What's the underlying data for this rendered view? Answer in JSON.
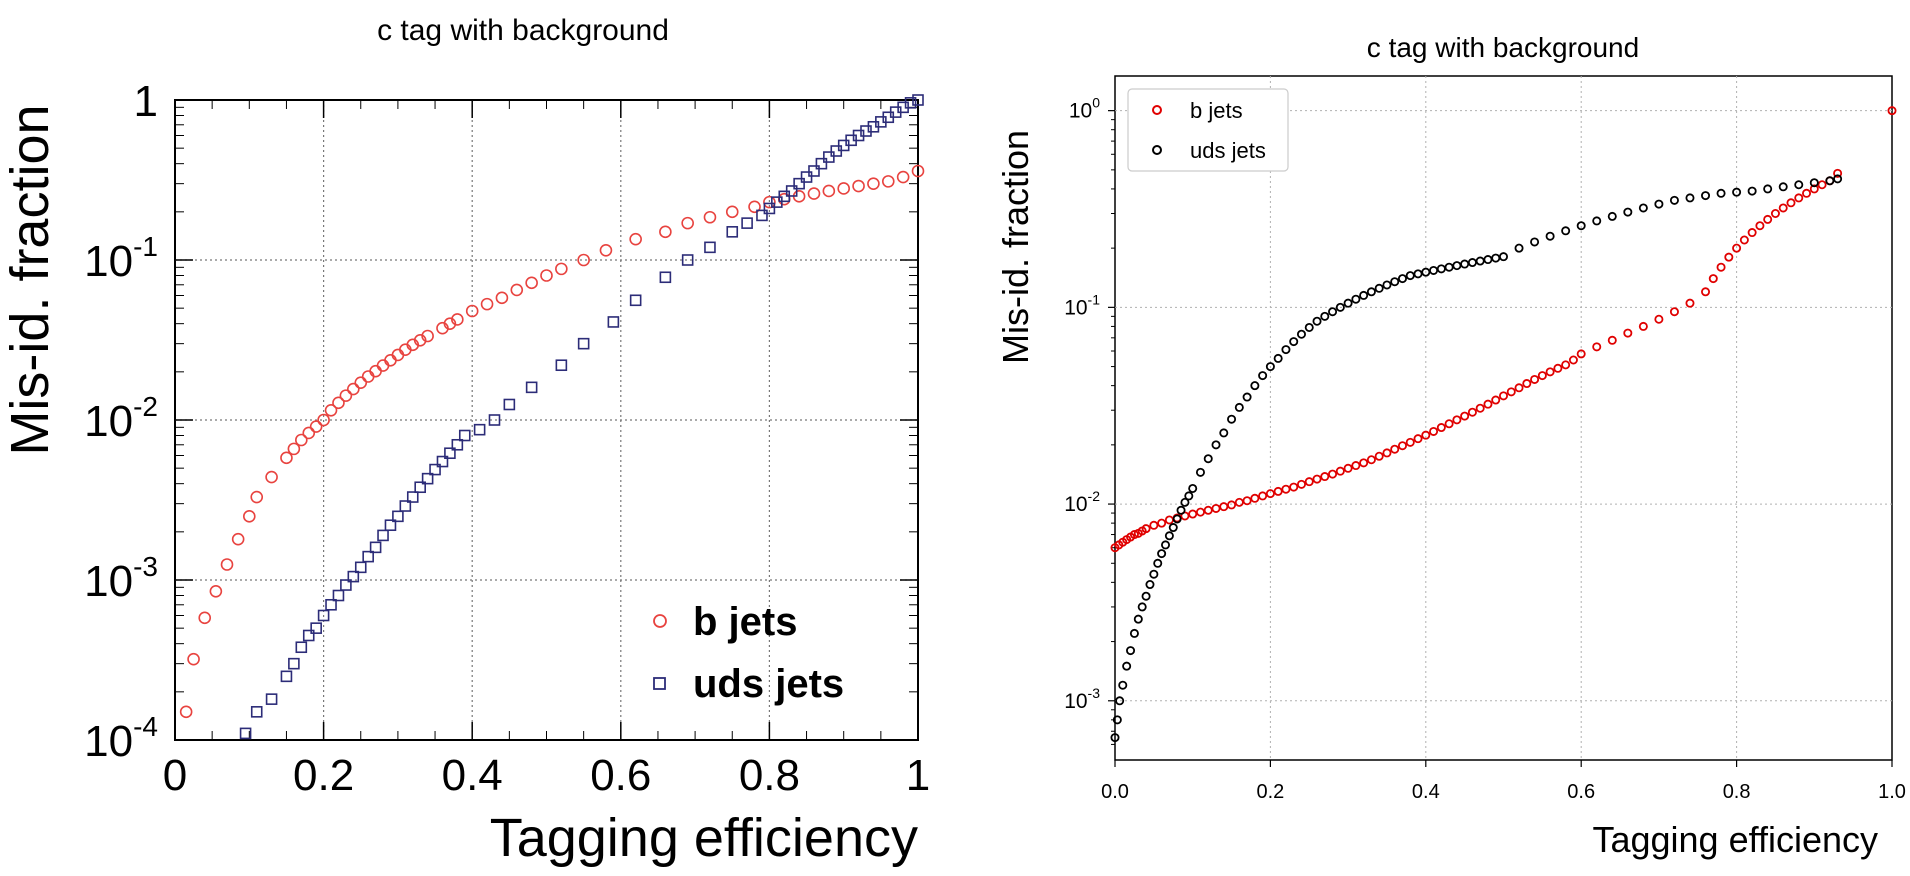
{
  "chart_data": [
    {
      "type": "scatter",
      "title": "c tag with background",
      "xlabel": "Tagging efficiency",
      "ylabel": "Mis-id. fraction",
      "xlim": [
        0,
        1
      ],
      "ylim": [
        0.0001,
        1
      ],
      "yscale": "log",
      "grid": true,
      "legend_position": "bottom-right",
      "x_ticks": [
        "0",
        "0.2",
        "0.4",
        "0.6",
        "0.8",
        "1"
      ],
      "y_ticks": [
        {
          "base": "10",
          "exp": "-4"
        },
        {
          "base": "10",
          "exp": "-3"
        },
        {
          "base": "10",
          "exp": "-2"
        },
        {
          "base": "10",
          "exp": "-1"
        },
        {
          "base": "1",
          "exp": ""
        }
      ],
      "series": [
        {
          "name": "b jets",
          "color": "#e8433f",
          "marker": "circle",
          "x": [
            0.015,
            0.025,
            0.04,
            0.055,
            0.07,
            0.085,
            0.1,
            0.11,
            0.13,
            0.15,
            0.16,
            0.17,
            0.18,
            0.19,
            0.2,
            0.21,
            0.22,
            0.23,
            0.24,
            0.25,
            0.26,
            0.27,
            0.28,
            0.29,
            0.3,
            0.31,
            0.32,
            0.33,
            0.34,
            0.36,
            0.37,
            0.38,
            0.4,
            0.42,
            0.44,
            0.46,
            0.48,
            0.5,
            0.52,
            0.55,
            0.58,
            0.62,
            0.66,
            0.69,
            0.72,
            0.75,
            0.78,
            0.8,
            0.82,
            0.84,
            0.86,
            0.88,
            0.9,
            0.92,
            0.94,
            0.96,
            0.98,
            1.0
          ],
          "y": [
            0.00015,
            0.00032,
            0.00058,
            0.00085,
            0.00125,
            0.0018,
            0.0025,
            0.0033,
            0.0044,
            0.0058,
            0.0066,
            0.0075,
            0.0083,
            0.0091,
            0.01,
            0.0115,
            0.0128,
            0.0142,
            0.0156,
            0.0171,
            0.0187,
            0.0202,
            0.0219,
            0.0236,
            0.0255,
            0.0275,
            0.0295,
            0.0315,
            0.0335,
            0.0375,
            0.04,
            0.0425,
            0.048,
            0.053,
            0.058,
            0.065,
            0.072,
            0.08,
            0.088,
            0.1,
            0.115,
            0.135,
            0.15,
            0.17,
            0.185,
            0.2,
            0.215,
            0.23,
            0.24,
            0.25,
            0.26,
            0.27,
            0.28,
            0.29,
            0.3,
            0.31,
            0.33,
            0.36
          ]
        },
        {
          "name": "uds jets",
          "color": "#2c2c78",
          "marker": "square",
          "x": [
            0.095,
            0.11,
            0.13,
            0.15,
            0.16,
            0.17,
            0.18,
            0.19,
            0.2,
            0.21,
            0.22,
            0.23,
            0.24,
            0.25,
            0.26,
            0.27,
            0.28,
            0.29,
            0.3,
            0.31,
            0.32,
            0.33,
            0.34,
            0.35,
            0.36,
            0.37,
            0.38,
            0.39,
            0.41,
            0.43,
            0.45,
            0.48,
            0.52,
            0.55,
            0.59,
            0.62,
            0.66,
            0.69,
            0.72,
            0.75,
            0.77,
            0.79,
            0.8,
            0.81,
            0.82,
            0.83,
            0.84,
            0.85,
            0.86,
            0.87,
            0.88,
            0.89,
            0.9,
            0.91,
            0.92,
            0.93,
            0.94,
            0.95,
            0.96,
            0.97,
            0.98,
            0.99,
            1.0
          ],
          "y": [
            0.00011,
            0.00015,
            0.00018,
            0.00025,
            0.0003,
            0.00038,
            0.00045,
            0.0005,
            0.0006,
            0.0007,
            0.0008,
            0.00093,
            0.00105,
            0.0012,
            0.0014,
            0.0016,
            0.0019,
            0.0022,
            0.0025,
            0.0029,
            0.0033,
            0.0038,
            0.0043,
            0.0049,
            0.0055,
            0.0062,
            0.007,
            0.008,
            0.0087,
            0.01,
            0.0125,
            0.016,
            0.022,
            0.03,
            0.041,
            0.056,
            0.078,
            0.1,
            0.12,
            0.15,
            0.17,
            0.19,
            0.21,
            0.23,
            0.25,
            0.27,
            0.3,
            0.33,
            0.36,
            0.4,
            0.44,
            0.48,
            0.52,
            0.56,
            0.6,
            0.64,
            0.68,
            0.73,
            0.78,
            0.84,
            0.9,
            0.96,
            1.0
          ]
        }
      ]
    },
    {
      "type": "scatter",
      "title": "c tag with background",
      "xlabel": "Tagging efficiency",
      "ylabel": "Mis-id. fraction",
      "xlim": [
        0,
        1
      ],
      "ylim": [
        0.0005,
        1.5
      ],
      "yscale": "log",
      "grid": true,
      "legend_position": "top-left",
      "x_ticks": [
        "0.0",
        "0.2",
        "0.4",
        "0.6",
        "0.8",
        "1.0"
      ],
      "y_ticks": [
        {
          "base": "10",
          "exp": "-3"
        },
        {
          "base": "10",
          "exp": "-2"
        },
        {
          "base": "10",
          "exp": "-1"
        },
        {
          "base": "10",
          "exp": "0"
        }
      ],
      "series": [
        {
          "name": "b jets",
          "color": "#e00000",
          "marker": "circle",
          "x": [
            0.0,
            0.005,
            0.01,
            0.015,
            0.02,
            0.025,
            0.03,
            0.035,
            0.04,
            0.05,
            0.06,
            0.07,
            0.08,
            0.09,
            0.1,
            0.11,
            0.12,
            0.13,
            0.14,
            0.15,
            0.16,
            0.17,
            0.18,
            0.19,
            0.2,
            0.21,
            0.22,
            0.23,
            0.24,
            0.25,
            0.26,
            0.27,
            0.28,
            0.29,
            0.3,
            0.31,
            0.32,
            0.33,
            0.34,
            0.35,
            0.36,
            0.37,
            0.38,
            0.39,
            0.4,
            0.41,
            0.42,
            0.43,
            0.44,
            0.45,
            0.46,
            0.47,
            0.48,
            0.49,
            0.5,
            0.51,
            0.52,
            0.53,
            0.54,
            0.55,
            0.56,
            0.57,
            0.58,
            0.59,
            0.6,
            0.62,
            0.64,
            0.66,
            0.68,
            0.7,
            0.72,
            0.74,
            0.76,
            0.77,
            0.78,
            0.79,
            0.8,
            0.81,
            0.82,
            0.83,
            0.84,
            0.85,
            0.86,
            0.87,
            0.88,
            0.89,
            0.9,
            0.91,
            0.92,
            0.93,
            1.0
          ],
          "y": [
            0.006,
            0.0062,
            0.0064,
            0.0066,
            0.0068,
            0.007,
            0.0071,
            0.0073,
            0.0075,
            0.0078,
            0.008,
            0.0083,
            0.0085,
            0.0087,
            0.0089,
            0.0091,
            0.0093,
            0.0095,
            0.0097,
            0.0099,
            0.0102,
            0.0104,
            0.0107,
            0.011,
            0.0113,
            0.0116,
            0.0119,
            0.0122,
            0.0126,
            0.013,
            0.0134,
            0.0138,
            0.0142,
            0.0147,
            0.0152,
            0.0157,
            0.0162,
            0.0168,
            0.0175,
            0.0182,
            0.019,
            0.0198,
            0.0206,
            0.0215,
            0.0224,
            0.0234,
            0.0245,
            0.0256,
            0.0268,
            0.028,
            0.0293,
            0.0307,
            0.0322,
            0.0338,
            0.0355,
            0.0372,
            0.039,
            0.041,
            0.043,
            0.045,
            0.047,
            0.049,
            0.051,
            0.054,
            0.058,
            0.063,
            0.068,
            0.074,
            0.08,
            0.087,
            0.095,
            0.105,
            0.12,
            0.14,
            0.16,
            0.18,
            0.2,
            0.22,
            0.24,
            0.26,
            0.28,
            0.3,
            0.32,
            0.34,
            0.36,
            0.38,
            0.4,
            0.42,
            0.44,
            0.48,
            1.0
          ]
        },
        {
          "name": "uds jets",
          "color": "#000000",
          "marker": "circle",
          "x": [
            0.0,
            0.003,
            0.006,
            0.01,
            0.015,
            0.02,
            0.025,
            0.03,
            0.035,
            0.04,
            0.045,
            0.05,
            0.055,
            0.06,
            0.065,
            0.07,
            0.075,
            0.08,
            0.085,
            0.09,
            0.095,
            0.1,
            0.11,
            0.12,
            0.13,
            0.14,
            0.15,
            0.16,
            0.17,
            0.18,
            0.19,
            0.2,
            0.21,
            0.22,
            0.23,
            0.24,
            0.25,
            0.26,
            0.27,
            0.28,
            0.29,
            0.3,
            0.31,
            0.32,
            0.33,
            0.34,
            0.35,
            0.36,
            0.37,
            0.38,
            0.39,
            0.4,
            0.41,
            0.42,
            0.43,
            0.44,
            0.45,
            0.46,
            0.47,
            0.48,
            0.49,
            0.5,
            0.52,
            0.54,
            0.56,
            0.58,
            0.6,
            0.62,
            0.64,
            0.66,
            0.68,
            0.7,
            0.72,
            0.74,
            0.76,
            0.78,
            0.8,
            0.82,
            0.84,
            0.86,
            0.88,
            0.9,
            0.92,
            0.93
          ],
          "y": [
            0.00065,
            0.0008,
            0.001,
            0.0012,
            0.0015,
            0.0018,
            0.0022,
            0.0026,
            0.003,
            0.0034,
            0.0039,
            0.0044,
            0.005,
            0.0056,
            0.0062,
            0.0069,
            0.0076,
            0.0084,
            0.0093,
            0.0102,
            0.011,
            0.012,
            0.0145,
            0.017,
            0.02,
            0.023,
            0.027,
            0.031,
            0.035,
            0.04,
            0.045,
            0.05,
            0.055,
            0.061,
            0.067,
            0.073,
            0.079,
            0.085,
            0.09,
            0.095,
            0.1,
            0.105,
            0.11,
            0.115,
            0.12,
            0.125,
            0.13,
            0.135,
            0.14,
            0.145,
            0.148,
            0.151,
            0.154,
            0.157,
            0.16,
            0.163,
            0.166,
            0.169,
            0.172,
            0.175,
            0.178,
            0.181,
            0.2,
            0.215,
            0.23,
            0.245,
            0.26,
            0.275,
            0.29,
            0.305,
            0.32,
            0.335,
            0.35,
            0.36,
            0.37,
            0.38,
            0.385,
            0.39,
            0.4,
            0.41,
            0.42,
            0.43,
            0.44,
            0.45
          ]
        }
      ]
    }
  ]
}
